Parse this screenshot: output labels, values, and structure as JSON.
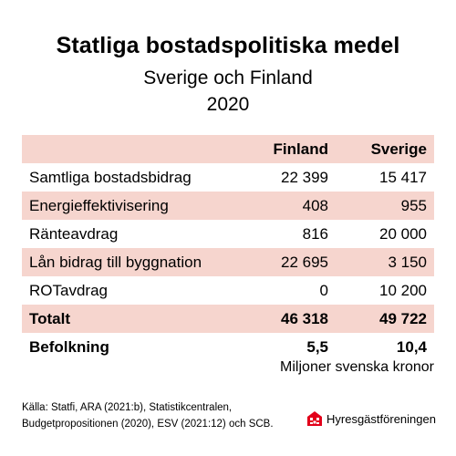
{
  "title": "Statliga bostadspolitiska medel",
  "subtitle": "Sverige och Finland",
  "year": "2020",
  "chart_data": {
    "type": "table",
    "columns": [
      "",
      "Finland",
      "Sverige"
    ],
    "rows": [
      {
        "label": "Samtliga bostadsbidrag",
        "finland": "22 399",
        "sverige": "15 417"
      },
      {
        "label": "Energieffektivisering",
        "finland": "408",
        "sverige": "955"
      },
      {
        "label": "Ränteavdrag",
        "finland": "816",
        "sverige": "20 000"
      },
      {
        "label": "Lån bidrag till byggnation",
        "finland": "22 695",
        "sverige": "3 150"
      },
      {
        "label": "ROTavdrag",
        "finland": "0",
        "sverige": "10 200"
      },
      {
        "label": "Totalt",
        "finland": "46 318",
        "sverige": "49 722"
      },
      {
        "label": "Befolkning",
        "finland": "5,5",
        "sverige": "10,4"
      }
    ],
    "unit_note": "Miljoner svenska kronor"
  },
  "source_line1": "Källa: Statfi, ARA (2021:b), Statistikcentralen,",
  "source_line2": "Budgetpropositionen (2020), ESV (2021:12) och SCB.",
  "logo_text": "Hyresgästföreningen",
  "colors": {
    "row_shade": "#f6d5ce",
    "logo_red": "#e2001a"
  }
}
